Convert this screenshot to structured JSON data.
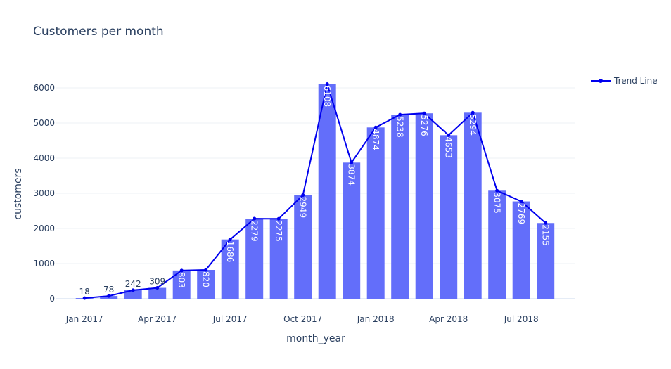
{
  "chart_data": {
    "type": "bar",
    "title": "Customers per month",
    "xlabel": "month_year",
    "ylabel": "customers",
    "ylim": [
      0,
      6500
    ],
    "y_ticks": [
      0,
      1000,
      2000,
      3000,
      4000,
      5000,
      6000
    ],
    "x_tick_labels": [
      {
        "date": "2017-01",
        "label": "Jan 2017"
      },
      {
        "date": "2017-04",
        "label": "Apr 2017"
      },
      {
        "date": "2017-07",
        "label": "Jul 2017"
      },
      {
        "date": "2017-10",
        "label": "Oct 2017"
      },
      {
        "date": "2018-01",
        "label": "Jan 2018"
      },
      {
        "date": "2018-04",
        "label": "Apr 2018"
      },
      {
        "date": "2018-07",
        "label": "Jul 2018"
      }
    ],
    "categories": [
      "2017-01",
      "2017-02",
      "2017-03",
      "2017-04",
      "2017-05",
      "2017-06",
      "2017-07",
      "2017-08",
      "2017-09",
      "2017-10",
      "2017-11",
      "2017-12",
      "2018-01",
      "2018-02",
      "2018-03",
      "2018-04",
      "2018-05",
      "2018-06",
      "2018-07",
      "2018-08"
    ],
    "values": [
      18,
      78,
      242,
      309,
      803,
      820,
      1686,
      2279,
      2275,
      2949,
      6108,
      3874,
      4874,
      5238,
      5276,
      4653,
      5294,
      3075,
      2769,
      2155
    ],
    "series": [
      {
        "type": "bar",
        "values": [
          18,
          78,
          242,
          309,
          803,
          820,
          1686,
          2279,
          2275,
          2949,
          6108,
          3874,
          4874,
          5238,
          5276,
          4653,
          5294,
          3075,
          2769,
          2155
        ]
      },
      {
        "type": "line",
        "name": "Trend Line",
        "values": [
          18,
          78,
          242,
          309,
          803,
          820,
          1686,
          2279,
          2275,
          2949,
          6108,
          3874,
          4874,
          5238,
          5276,
          4653,
          5294,
          3075,
          2769,
          2155
        ]
      }
    ],
    "bar_color": "#636efa",
    "line_color": "#0000ee",
    "grid": true,
    "legend_position": "top-right"
  }
}
